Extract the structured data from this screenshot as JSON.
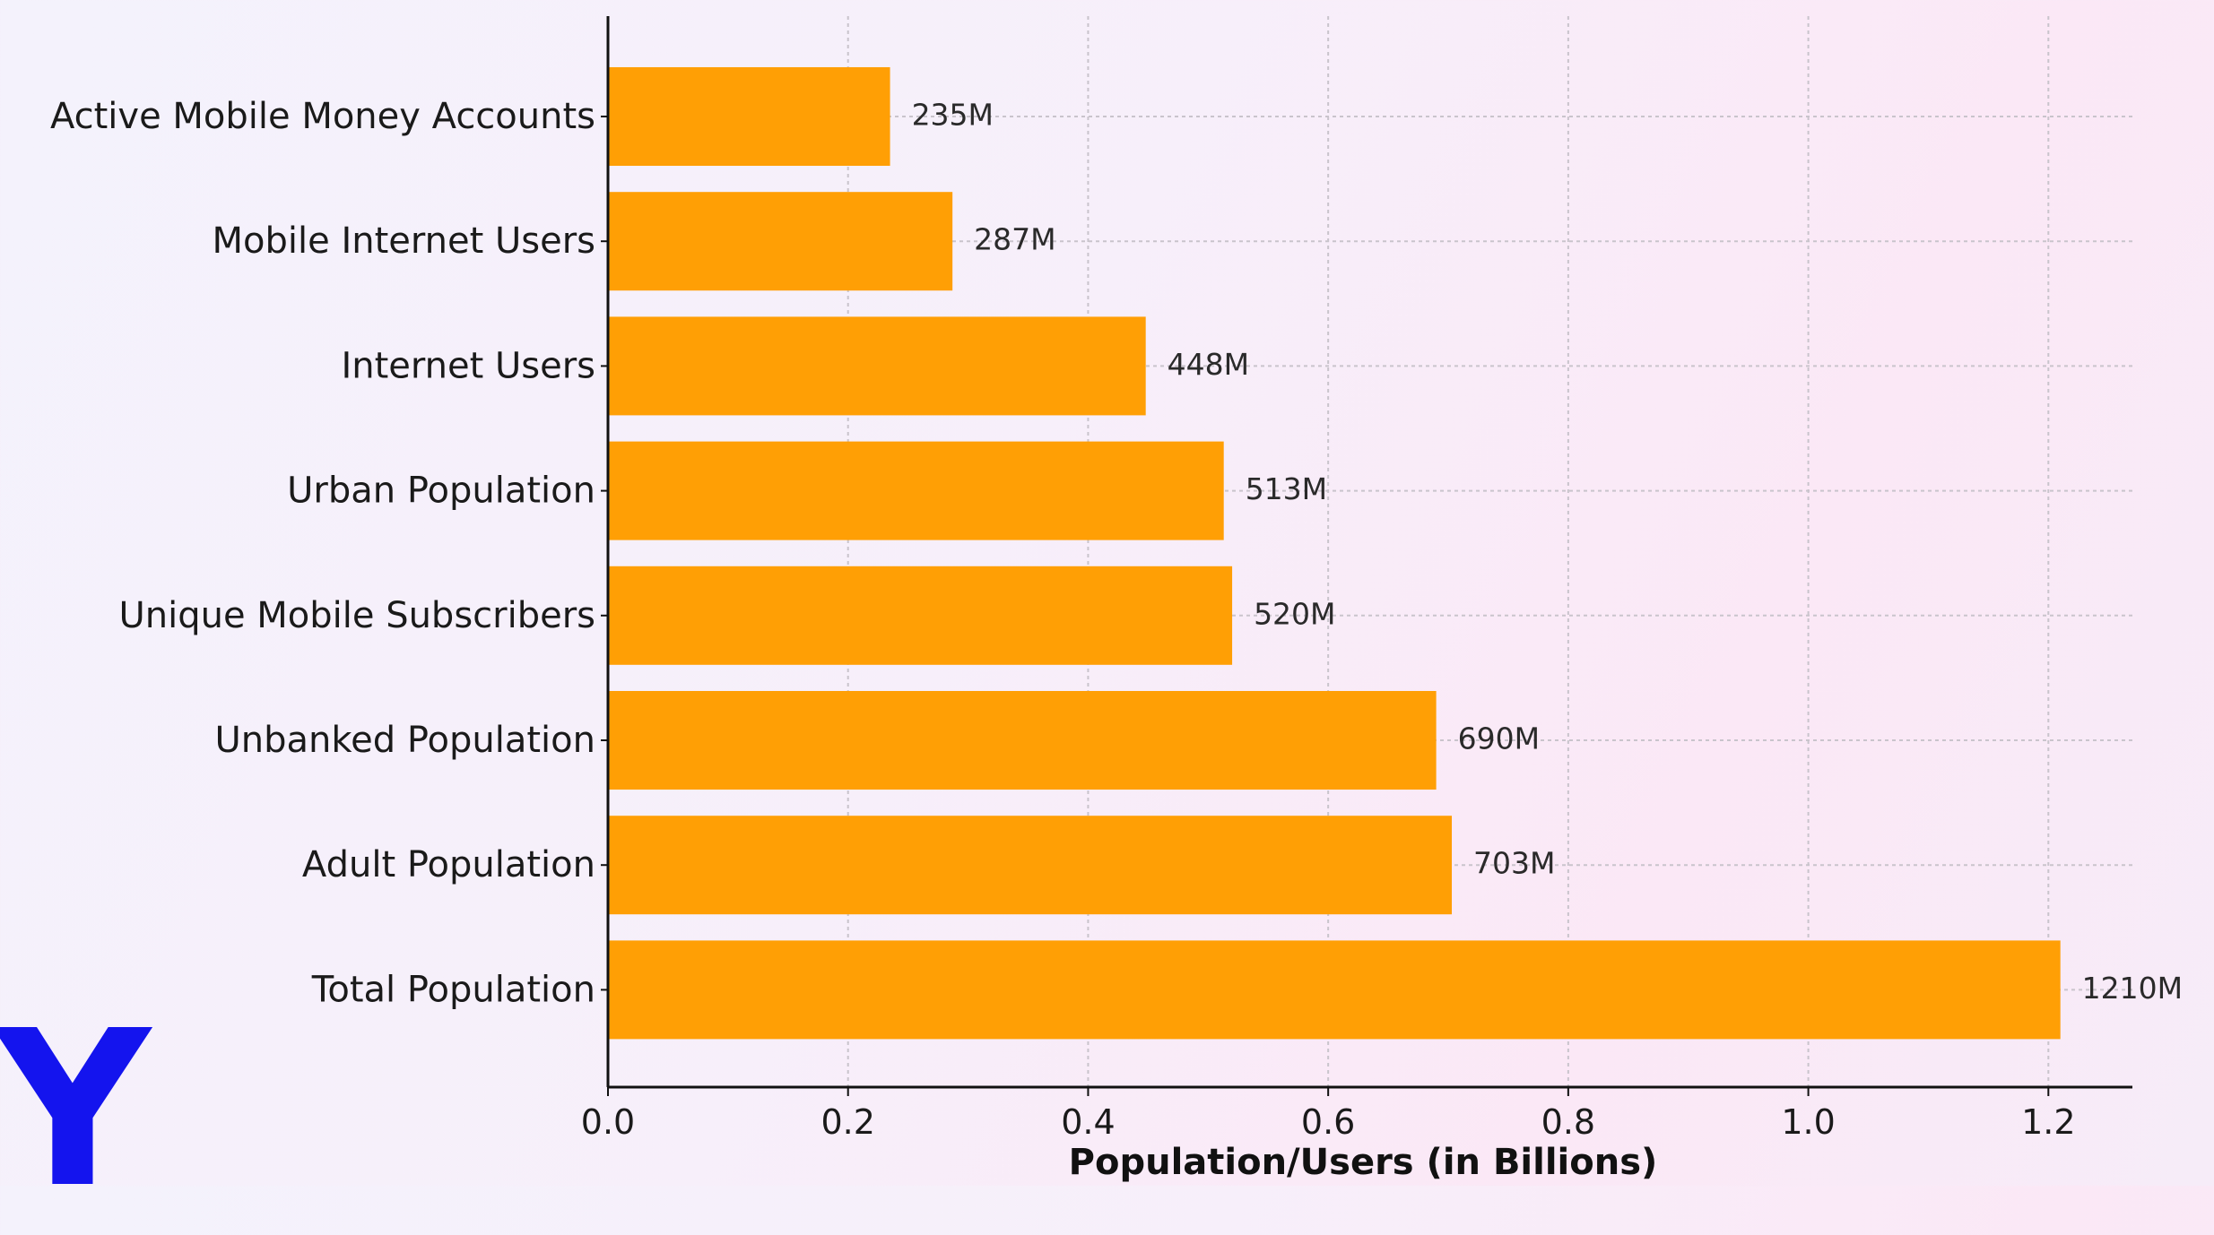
{
  "chart_data": {
    "type": "bar",
    "orientation": "horizontal",
    "categories": [
      "Active Mobile Money Accounts",
      "Mobile Internet Users",
      "Internet Users",
      "Urban Population",
      "Unique Mobile Subscribers",
      "Unbanked Population",
      "Adult Population",
      "Total Population"
    ],
    "values": [
      0.235,
      0.287,
      0.448,
      0.513,
      0.52,
      0.69,
      0.703,
      1.21
    ],
    "data_labels": [
      "235M",
      "287M",
      "448M",
      "513M",
      "520M",
      "690M",
      "703M",
      "1210M"
    ],
    "xlabel": "Population/Users (in Billions)",
    "ylabel": "",
    "xlim": [
      0,
      1.27
    ],
    "xticks": [
      0.0,
      0.2,
      0.4,
      0.6,
      0.8,
      1.0,
      1.2
    ],
    "xtick_labels": [
      "0.0",
      "0.2",
      "0.4",
      "0.6",
      "0.8",
      "1.0",
      "1.2"
    ],
    "grid": true,
    "bar_color": "#ff9f05",
    "axis_color": "#111111",
    "grid_color": "#c9c4cc"
  },
  "logo": {
    "letter": "Y",
    "color": "#1414ee"
  }
}
